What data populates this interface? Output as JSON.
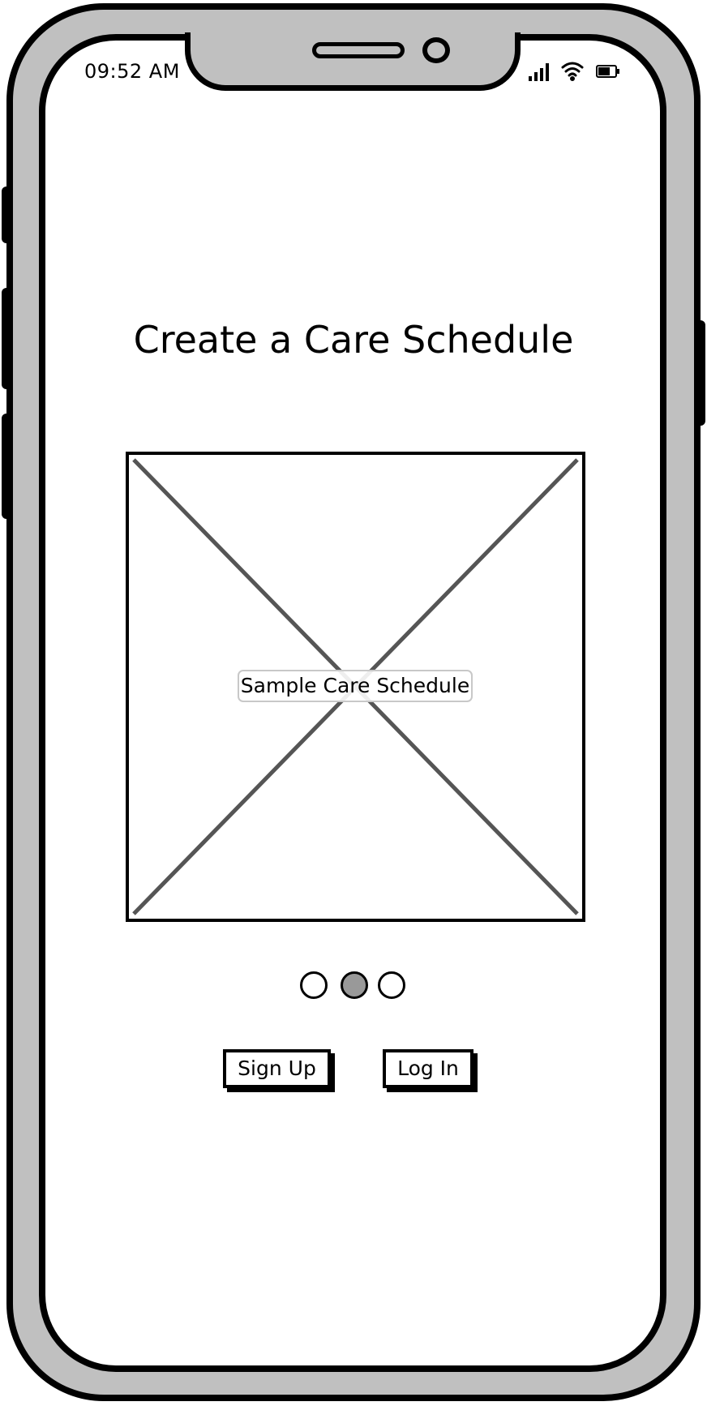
{
  "status_bar": {
    "time": "09:52 AM",
    "icons": [
      "signal-icon",
      "wifi-icon",
      "battery-icon"
    ]
  },
  "main": {
    "title": "Create a Care Schedule",
    "carousel": {
      "image_label": "Sample Care Schedule",
      "page_count": 3,
      "active_page": 2
    },
    "buttons": {
      "sign_up": "Sign Up",
      "log_in": "Log In"
    }
  },
  "colors": {
    "frame": "#c0c0c0",
    "outline": "#000000",
    "placeholder_cross": "#555555",
    "active_dot": "#999999"
  }
}
